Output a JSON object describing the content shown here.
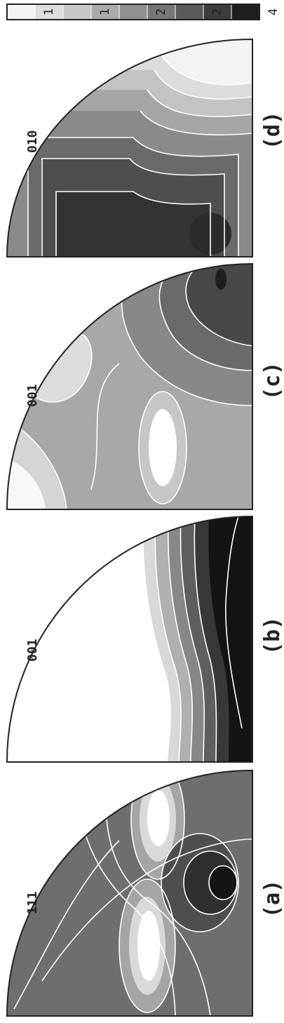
{
  "panels": [
    {
      "id": "a",
      "label": "(a)",
      "pole": "111"
    },
    {
      "id": "b",
      "label": "(b)",
      "pole": "001"
    },
    {
      "id": "c",
      "label": "(c)",
      "pole": "001"
    },
    {
      "id": "d",
      "label": "(d)",
      "pole": "010"
    }
  ],
  "scale": {
    "labels": [
      "4",
      "2",
      "2",
      "1",
      "1"
    ],
    "colors": [
      "#1e1e1e",
      "#3c3c3c",
      "#5a5a5a",
      "#767676",
      "#909090",
      "#ababab",
      "#c6c6c6",
      "#dedede",
      "#f4f4f4"
    ]
  }
}
